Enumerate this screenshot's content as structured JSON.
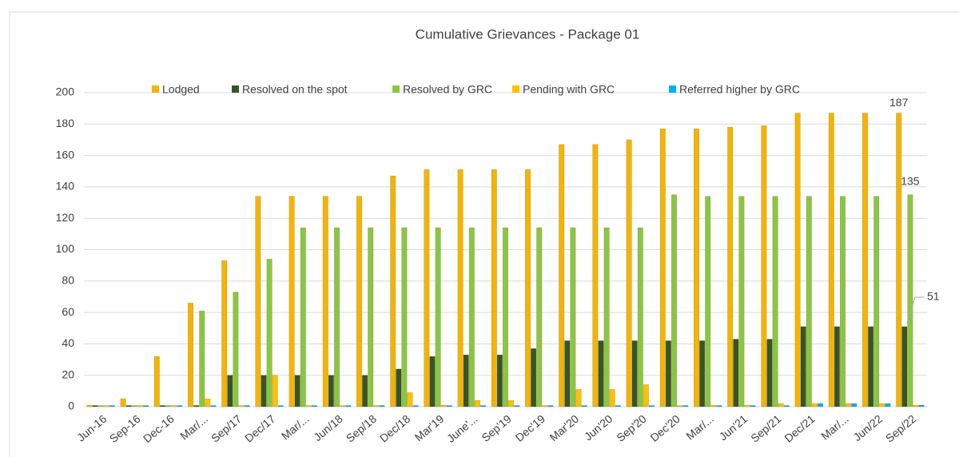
{
  "chart_data": {
    "type": "bar",
    "title": "Cumulative Grievances - Package 01",
    "categories": [
      "Jun-16",
      "Sep-16",
      "Dec-16",
      "Mar/...",
      "Sep/17",
      "Dec/17",
      "Mar/...",
      "Jun/18",
      "Sep/18",
      "Dec/18",
      "Mar'19",
      "June'...",
      "Sep'19",
      "Dec'19",
      "Mar'20",
      "Jun'20",
      "Sep'20",
      "Dec'20",
      "Mar/...",
      "Jun'21",
      "Sep/21",
      "Dec/21",
      "Mar/...",
      "Jun/22",
      "Sep/22"
    ],
    "series": [
      {
        "name": "Lodged",
        "color": "#f5b400",
        "values": [
          1,
          5,
          32,
          66,
          93,
          134,
          134,
          134,
          134,
          147,
          151,
          151,
          151,
          151,
          167,
          167,
          170,
          177,
          177,
          178,
          179,
          187,
          187,
          187,
          187
        ]
      },
      {
        "name": "Resolved on the spot",
        "color": "#375623",
        "values": [
          0,
          0,
          0,
          0,
          20,
          20,
          20,
          20,
          20,
          24,
          32,
          33,
          33,
          37,
          42,
          42,
          42,
          42,
          42,
          43,
          43,
          51,
          51,
          51,
          51
        ]
      },
      {
        "name": "Resolved by GRC",
        "color": "#8cc63f",
        "values": [
          0,
          0,
          0,
          61,
          73,
          94,
          114,
          114,
          114,
          114,
          114,
          114,
          114,
          114,
          114,
          114,
          114,
          135,
          134,
          134,
          134,
          134,
          134,
          134,
          135
        ]
      },
      {
        "name": "Pending with GRC",
        "color": "#ffc000",
        "values": [
          0,
          0,
          0,
          5,
          0,
          20,
          0,
          0,
          0,
          9,
          1,
          4,
          4,
          0,
          11,
          11,
          14,
          0,
          1,
          1,
          2,
          2,
          2,
          2,
          1
        ]
      },
      {
        "name": "Referred higher by GRC",
        "color": "#00b0f0",
        "values": [
          0,
          0,
          0,
          0,
          0,
          0,
          0,
          0,
          0,
          0,
          0,
          0,
          0,
          0,
          0,
          0,
          0,
          0,
          0,
          0,
          0,
          2,
          2,
          2,
          1
        ]
      }
    ],
    "ylim": [
      0,
      200
    ],
    "yticks": [
      0,
      20,
      40,
      60,
      80,
      100,
      120,
      140,
      160,
      180,
      200
    ],
    "grid": true,
    "legend": "top"
  }
}
